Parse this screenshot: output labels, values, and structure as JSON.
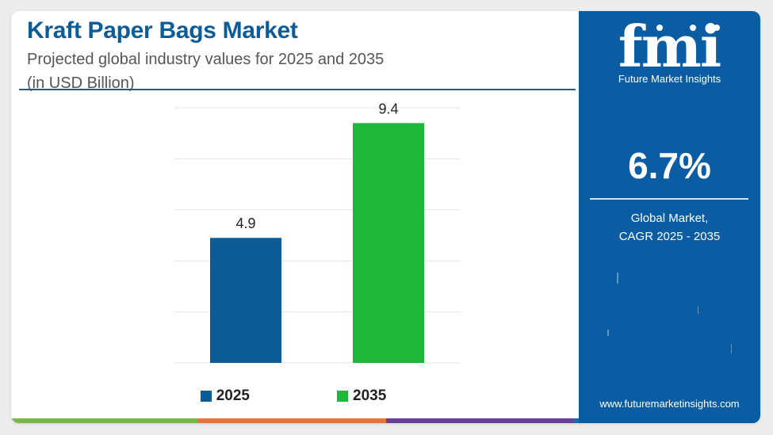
{
  "header": {
    "title": "Kraft Paper Bags Market",
    "subtitle_line1": "Projected global industry values for 2025 and 2035",
    "subtitle_line2": "(in USD Billion)"
  },
  "chart_data": {
    "type": "bar",
    "categories": [
      "2025",
      "2035"
    ],
    "values": [
      4.9,
      9.4
    ],
    "colors": [
      "#0b5c97",
      "#1db83a"
    ],
    "data_labels": [
      "4.9",
      "9.4"
    ],
    "legend": [
      "2025",
      "2035"
    ],
    "legend_position": "bottom",
    "ylim": [
      0,
      10
    ],
    "grid": true,
    "title": "Kraft Paper Bags Market",
    "xlabel": "",
    "ylabel": ""
  },
  "sidebar": {
    "logo_text": "fmi",
    "logo_subtitle": "Future Market Insights",
    "cagr_value": "6.7%",
    "cagr_label_line1": "Global Market,",
    "cagr_label_line2": "CAGR 2025 - 2035",
    "website": "www.futuremarketinsights.com"
  },
  "colors": {
    "title": "#0b5c97",
    "sidebar_background": "#0b5da3",
    "bar_2025": "#0b5c97",
    "bar_2035": "#1db83a",
    "bottom_bar": [
      "#7ab648",
      "#e8733a",
      "#6a3f98",
      "#1c6ab0"
    ]
  }
}
